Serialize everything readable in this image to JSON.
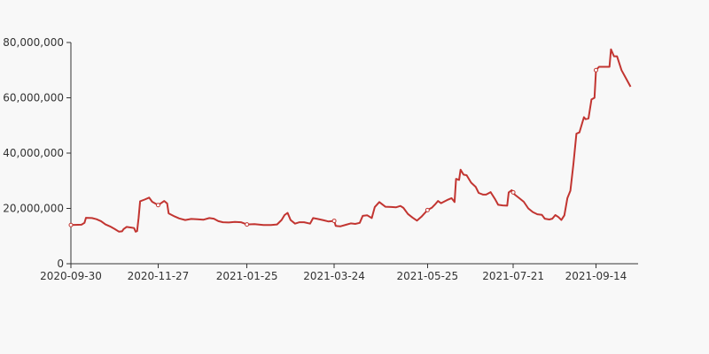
{
  "chart_data": {
    "type": "line",
    "title": "",
    "xlabel": "",
    "ylabel": "",
    "x_tick_labels": [
      "2020-09-30",
      "2020-11-27",
      "2021-01-25",
      "2021-03-24",
      "2021-05-25",
      "2021-07-21",
      "2021-09-14"
    ],
    "y_tick_labels": [
      "0",
      "20,000,000",
      "40,000,000",
      "60,000,000",
      "80,000,000"
    ],
    "ylim": [
      0,
      80000000
    ],
    "xlim": [
      "2020-09-30",
      "2021-10-12"
    ],
    "grid": false,
    "colors": {
      "line": "#c23531",
      "marker_fill": "#ffffff",
      "axis": "#333333",
      "background": "#f8f8f8"
    },
    "series": [
      {
        "values": [
          [
            "2020-09-30",
            14000000
          ],
          [
            "2020-10-07",
            14100000
          ],
          [
            "2020-10-09",
            14800000
          ],
          [
            "2020-10-10",
            16600000
          ],
          [
            "2020-10-14",
            16500000
          ],
          [
            "2020-10-17",
            16100000
          ],
          [
            "2020-10-20",
            15400000
          ],
          [
            "2020-10-23",
            14200000
          ],
          [
            "2020-10-26",
            13500000
          ],
          [
            "2020-10-29",
            12600000
          ],
          [
            "2020-11-01",
            11600000
          ],
          [
            "2020-11-03",
            11700000
          ],
          [
            "2020-11-04",
            12500000
          ],
          [
            "2020-11-06",
            13300000
          ],
          [
            "2020-11-09",
            13100000
          ],
          [
            "2020-11-11",
            12900000
          ],
          [
            "2020-11-12",
            11600000
          ],
          [
            "2020-11-13",
            11800000
          ],
          [
            "2020-11-14",
            16600000
          ],
          [
            "2020-11-15",
            22600000
          ],
          [
            "2020-11-18",
            23200000
          ],
          [
            "2020-11-21",
            23900000
          ],
          [
            "2020-11-23",
            22400000
          ],
          [
            "2020-11-27",
            21200000
          ],
          [
            "2020-12-01",
            22700000
          ],
          [
            "2020-12-03",
            21800000
          ],
          [
            "2020-12-04",
            18200000
          ],
          [
            "2020-12-08",
            17100000
          ],
          [
            "2020-12-11",
            16400000
          ],
          [
            "2020-12-15",
            15800000
          ],
          [
            "2020-12-19",
            16200000
          ],
          [
            "2020-12-23",
            16100000
          ],
          [
            "2020-12-27",
            15900000
          ],
          [
            "2020-12-31",
            16500000
          ],
          [
            "2021-01-03",
            16300000
          ],
          [
            "2021-01-06",
            15400000
          ],
          [
            "2021-01-09",
            15000000
          ],
          [
            "2021-01-13",
            14900000
          ],
          [
            "2021-01-17",
            15100000
          ],
          [
            "2021-01-21",
            15000000
          ],
          [
            "2021-01-25",
            14200000
          ],
          [
            "2021-01-30",
            14300000
          ],
          [
            "2021-02-05",
            14000000
          ],
          [
            "2021-02-10",
            14000000
          ],
          [
            "2021-02-14",
            14200000
          ],
          [
            "2021-02-17",
            15800000
          ],
          [
            "2021-02-19",
            17600000
          ],
          [
            "2021-02-21",
            18400000
          ],
          [
            "2021-02-23",
            15800000
          ],
          [
            "2021-02-26",
            14500000
          ],
          [
            "2021-03-01",
            15000000
          ],
          [
            "2021-03-04",
            15000000
          ],
          [
            "2021-03-08",
            14500000
          ],
          [
            "2021-03-10",
            16500000
          ],
          [
            "2021-03-13",
            16200000
          ],
          [
            "2021-03-17",
            15700000
          ],
          [
            "2021-03-20",
            15300000
          ],
          [
            "2021-03-24",
            15500000
          ],
          [
            "2021-03-25",
            13700000
          ],
          [
            "2021-03-28",
            13500000
          ],
          [
            "2021-04-01",
            14100000
          ],
          [
            "2021-04-04",
            14600000
          ],
          [
            "2021-04-07",
            14400000
          ],
          [
            "2021-04-10",
            14800000
          ],
          [
            "2021-04-12",
            17300000
          ],
          [
            "2021-04-15",
            17500000
          ],
          [
            "2021-04-18",
            16500000
          ],
          [
            "2021-04-20",
            20500000
          ],
          [
            "2021-04-23",
            22300000
          ],
          [
            "2021-04-27",
            20600000
          ],
          [
            "2021-05-01",
            20500000
          ],
          [
            "2021-05-04",
            20400000
          ],
          [
            "2021-05-07",
            20900000
          ],
          [
            "2021-05-09",
            20200000
          ],
          [
            "2021-05-12",
            18000000
          ],
          [
            "2021-05-15",
            16700000
          ],
          [
            "2021-05-18",
            15600000
          ],
          [
            "2021-05-21",
            17000000
          ],
          [
            "2021-05-25",
            19400000
          ],
          [
            "2021-05-28",
            20300000
          ],
          [
            "2021-05-30",
            21400000
          ],
          [
            "2021-06-01",
            22700000
          ],
          [
            "2021-06-03",
            21900000
          ],
          [
            "2021-06-07",
            23000000
          ],
          [
            "2021-06-10",
            23700000
          ],
          [
            "2021-06-12",
            22300000
          ],
          [
            "2021-06-13",
            30700000
          ],
          [
            "2021-06-15",
            30300000
          ],
          [
            "2021-06-16",
            34000000
          ],
          [
            "2021-06-18",
            32200000
          ],
          [
            "2021-06-20",
            32000000
          ],
          [
            "2021-06-23",
            29300000
          ],
          [
            "2021-06-26",
            27800000
          ],
          [
            "2021-06-28",
            25600000
          ],
          [
            "2021-07-01",
            25000000
          ],
          [
            "2021-07-03",
            25000000
          ],
          [
            "2021-07-06",
            25900000
          ],
          [
            "2021-07-09",
            23300000
          ],
          [
            "2021-07-11",
            21300000
          ],
          [
            "2021-07-14",
            21100000
          ],
          [
            "2021-07-17",
            21000000
          ],
          [
            "2021-07-18",
            25800000
          ],
          [
            "2021-07-20",
            26600000
          ],
          [
            "2021-07-22",
            25000000
          ],
          [
            "2021-07-25",
            23700000
          ],
          [
            "2021-07-28",
            22400000
          ],
          [
            "2021-07-31",
            20000000
          ],
          [
            "2021-08-03",
            18700000
          ],
          [
            "2021-08-06",
            17900000
          ],
          [
            "2021-08-09",
            17700000
          ],
          [
            "2021-08-11",
            16300000
          ],
          [
            "2021-08-14",
            16000000
          ],
          [
            "2021-08-16",
            16300000
          ],
          [
            "2021-08-18",
            17600000
          ],
          [
            "2021-08-20",
            16900000
          ],
          [
            "2021-08-22",
            15800000
          ],
          [
            "2021-08-24",
            17500000
          ],
          [
            "2021-08-26",
            23700000
          ],
          [
            "2021-08-28",
            26400000
          ],
          [
            "2021-08-30",
            36000000
          ],
          [
            "2021-09-01",
            47000000
          ],
          [
            "2021-09-03",
            47500000
          ],
          [
            "2021-09-06",
            53000000
          ],
          [
            "2021-09-07",
            52300000
          ],
          [
            "2021-09-09",
            52500000
          ],
          [
            "2021-09-11",
            59400000
          ],
          [
            "2021-09-13",
            60000000
          ],
          [
            "2021-09-14",
            70000000
          ],
          [
            "2021-09-16",
            71200000
          ],
          [
            "2021-09-20",
            71200000
          ],
          [
            "2021-09-23",
            71200000
          ],
          [
            "2021-09-24",
            77500000
          ],
          [
            "2021-09-26",
            75000000
          ],
          [
            "2021-09-28",
            75000000
          ],
          [
            "2021-10-01",
            70000000
          ],
          [
            "2021-10-04",
            67000000
          ],
          [
            "2021-10-07",
            64000000
          ]
        ],
        "markers": [
          "2020-09-30",
          "2020-11-27",
          "2021-01-25",
          "2021-03-24",
          "2021-05-25",
          "2021-07-21",
          "2021-09-14"
        ]
      }
    ]
  }
}
